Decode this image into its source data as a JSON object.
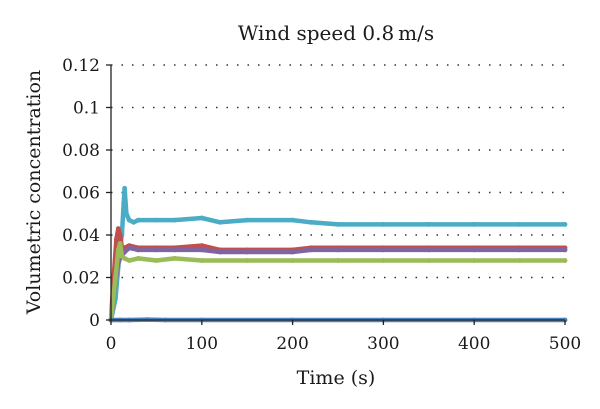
{
  "chart_data": {
    "type": "line",
    "title": "Wind speed 0.8 m/s",
    "xlabel": "Time (s)",
    "ylabel": "Volumetric concentration",
    "xlim": [
      0,
      500
    ],
    "ylim": [
      0,
      0.12
    ],
    "x_ticks": [
      "0",
      "100",
      "200",
      "300",
      "400",
      "500"
    ],
    "y_ticks": [
      "0",
      "0.02",
      "0.04",
      "0.06",
      "0.08",
      "0.1",
      "0.12"
    ],
    "grid": "horizontal-dotted",
    "series": [
      {
        "color": "#4bacc6",
        "x": [
          0,
          5,
          8,
          10,
          12,
          14,
          15,
          17,
          20,
          25,
          30,
          50,
          70,
          100,
          120,
          150,
          200,
          220,
          250,
          300,
          350,
          400,
          450,
          500
        ],
        "y": [
          0,
          0.01,
          0.025,
          0.035,
          0.04,
          0.055,
          0.062,
          0.05,
          0.047,
          0.046,
          0.047,
          0.047,
          0.047,
          0.048,
          0.046,
          0.047,
          0.047,
          0.046,
          0.045,
          0.045,
          0.045,
          0.045,
          0.045,
          0.045
        ]
      },
      {
        "color": "#c0504d",
        "x": [
          0,
          3,
          6,
          8,
          10,
          12,
          15,
          20,
          30,
          50,
          70,
          100,
          120,
          150,
          200,
          220,
          250,
          300,
          350,
          400,
          450,
          500
        ],
        "y": [
          0,
          0.02,
          0.038,
          0.043,
          0.04,
          0.034,
          0.034,
          0.035,
          0.034,
          0.034,
          0.034,
          0.035,
          0.033,
          0.033,
          0.033,
          0.034,
          0.034,
          0.034,
          0.034,
          0.034,
          0.034,
          0.034
        ]
      },
      {
        "color": "#8064a2",
        "x": [
          0,
          4,
          7,
          9,
          11,
          13,
          15,
          20,
          30,
          50,
          70,
          100,
          120,
          150,
          200,
          220,
          250,
          300,
          350,
          400,
          450,
          500
        ],
        "y": [
          0,
          0.015,
          0.025,
          0.028,
          0.03,
          0.031,
          0.032,
          0.034,
          0.033,
          0.033,
          0.033,
          0.033,
          0.032,
          0.032,
          0.032,
          0.033,
          0.033,
          0.033,
          0.033,
          0.033,
          0.033,
          0.033
        ]
      },
      {
        "color": "#9bbb59",
        "x": [
          0,
          5,
          8,
          10,
          12,
          15,
          20,
          30,
          50,
          70,
          100,
          150,
          200,
          250,
          300,
          350,
          400,
          450,
          500
        ],
        "y": [
          0,
          0.02,
          0.033,
          0.036,
          0.03,
          0.029,
          0.028,
          0.029,
          0.028,
          0.029,
          0.028,
          0.028,
          0.028,
          0.028,
          0.028,
          0.028,
          0.028,
          0.028,
          0.028
        ]
      },
      {
        "color": "#4f81bd",
        "x": [
          0,
          10,
          20,
          40,
          60,
          100,
          200,
          300,
          400,
          500
        ],
        "y": [
          0,
          0,
          0,
          0.0002,
          0,
          0,
          0,
          0,
          0,
          0
        ]
      }
    ]
  }
}
